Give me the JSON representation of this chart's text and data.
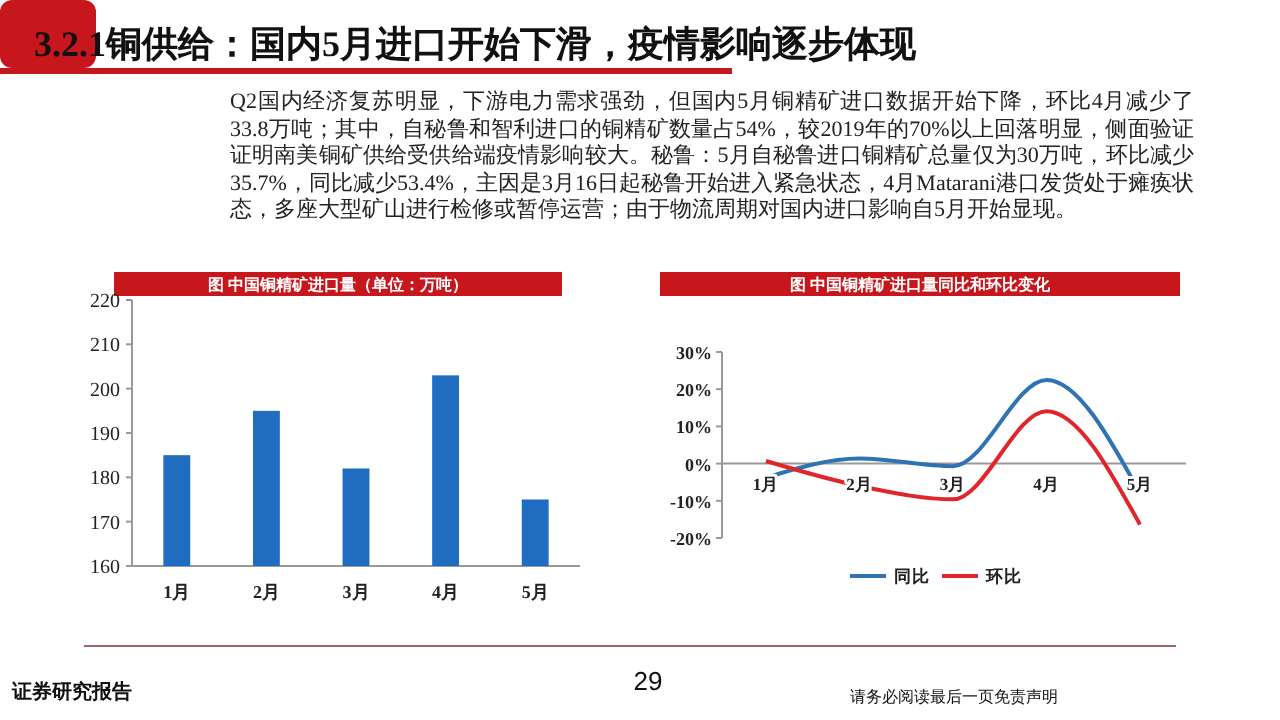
{
  "chart_data": [
    {
      "type": "other",
      "title": "3.2.1铜供给：国内5月进口开始下滑，疫情影响逐步体现",
      "annotations": [
        "Q2国内经济复苏明显，下游电力需求强劲，但国内5月铜精矿进口数据开始下降，环比4月减少了33.8万吨；其中，自秘鲁和智利进口的铜精矿数量占54%，较2019年的70%以上回落明显，侧面验证证明南美铜矿供给受供给端疫情影响较大。秘鲁：5月自秘鲁进口铜精矿总量仅为30万吨，环比减少35.7%，同比减少53.4%，主因是3月16日起秘鲁开始进入紧急状态，4月Matarani港口发货处于瘫痪状态，多座大型矿山进行检修或暂停运营；由于物流周期对国内进口影响自5月开始显现。",
        "证券研究报告",
        "29",
        "请务必阅读最后一页免责声明"
      ]
    },
    {
      "type": "bar",
      "title": "图 中国铜精矿进口量（单位：万吨）",
      "categories": [
        "1月",
        "2月",
        "3月",
        "4月",
        "5月"
      ],
      "values": [
        185,
        195,
        182,
        203,
        175
      ],
      "color": "#1f6cc0",
      "ylim": [
        160,
        220
      ],
      "yticks": [
        160,
        170,
        180,
        190,
        200,
        210,
        220
      ]
    },
    {
      "type": "line",
      "title": "图 中国铜精矿进口量同比和环比变化",
      "categories": [
        "1月",
        "2月",
        "3月",
        "4月",
        "5月"
      ],
      "series": [
        {
          "name": "同比",
          "color": "#2e74b5",
          "values": [
            -3.8,
            1.4,
            -0.7,
            22.5,
            -7.9
          ]
        },
        {
          "name": "环比",
          "color": "#e0262b",
          "values": [
            0.7,
            -6,
            -9.6,
            14.1,
            -16.4
          ]
        }
      ],
      "ylim": [
        -20,
        30
      ],
      "yticks": [
        {
          "value": -20,
          "label": "-20%"
        },
        {
          "value": -10,
          "label": "-10%"
        },
        {
          "value": 0,
          "label": "0%"
        },
        {
          "value": 10,
          "label": "10%"
        },
        {
          "value": 20,
          "label": "20%"
        },
        {
          "value": 30,
          "label": "30%"
        }
      ],
      "legend": "bottom",
      "marker": "none"
    }
  ]
}
